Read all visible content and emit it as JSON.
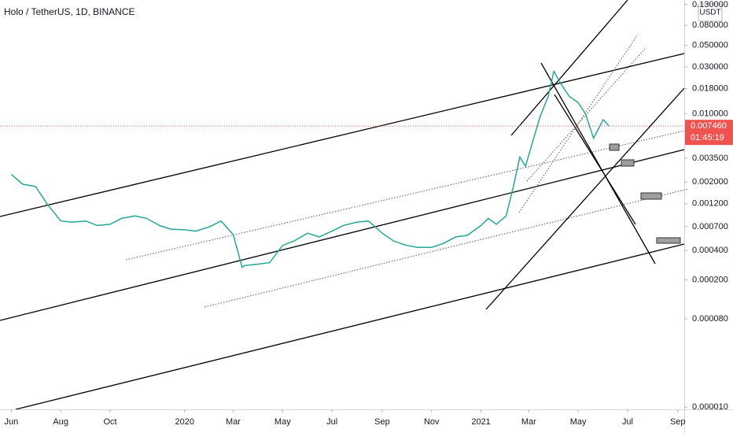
{
  "chart_data": {
    "type": "line",
    "title": "Holo / TetherUS, 1D, BINANCE",
    "currency": "USDT",
    "countdown": "01:45:19",
    "last_price": {
      "value": 0.00746,
      "label": "0.007460"
    },
    "log_scale": true,
    "color": "#26a69a",
    "x": [
      "2019-06-01",
      "2019-06-15",
      "2019-07-01",
      "2019-07-15",
      "2019-08-01",
      "2019-08-15",
      "2019-09-01",
      "2019-09-15",
      "2019-10-01",
      "2019-10-15",
      "2019-11-01",
      "2019-11-15",
      "2019-12-01",
      "2019-12-15",
      "2020-01-01",
      "2020-01-15",
      "2020-02-01",
      "2020-02-15",
      "2020-03-01",
      "2020-03-12",
      "2020-03-15",
      "2020-04-01",
      "2020-04-15",
      "2020-05-01",
      "2020-05-15",
      "2020-06-01",
      "2020-06-15",
      "2020-07-01",
      "2020-07-15",
      "2020-08-01",
      "2020-08-15",
      "2020-09-01",
      "2020-09-15",
      "2020-10-01",
      "2020-10-15",
      "2020-11-01",
      "2020-11-15",
      "2020-12-01",
      "2020-12-15",
      "2021-01-01",
      "2021-01-10",
      "2021-01-20",
      "2021-02-01",
      "2021-02-10",
      "2021-02-18",
      "2021-02-25",
      "2021-03-05",
      "2021-03-15",
      "2021-03-25",
      "2021-04-01",
      "2021-04-10",
      "2021-04-20",
      "2021-05-01",
      "2021-05-10",
      "2021-05-20",
      "2021-06-01",
      "2021-06-08"
    ],
    "values": [
      0.0024,
      0.0019,
      0.0018,
      0.0012,
      0.0008,
      0.00078,
      0.0008,
      0.00072,
      0.00074,
      0.00085,
      0.0009,
      0.00085,
      0.00072,
      0.00066,
      0.00065,
      0.00063,
      0.0007,
      0.0008,
      0.00058,
      0.00027,
      0.00028,
      0.00029,
      0.0003,
      0.00045,
      0.0005,
      0.0006,
      0.00055,
      0.00063,
      0.00072,
      0.00078,
      0.0008,
      0.0006,
      0.0005,
      0.00045,
      0.00043,
      0.00043,
      0.00047,
      0.00055,
      0.00057,
      0.00072,
      0.00085,
      0.00074,
      0.0009,
      0.0018,
      0.0036,
      0.0029,
      0.0049,
      0.0093,
      0.015,
      0.027,
      0.02,
      0.015,
      0.013,
      0.01,
      0.0056,
      0.0087,
      0.0075
    ],
    "xlim": [
      "2019-05-18",
      "2021-09-09"
    ],
    "xticks": [
      {
        "value": "2019-06-01",
        "label": "Jun"
      },
      {
        "value": "2019-08-01",
        "label": "Aug"
      },
      {
        "value": "2019-10-01",
        "label": "Oct"
      },
      {
        "value": "2020-01-01",
        "label": "2020"
      },
      {
        "value": "2020-03-01",
        "label": "Mar"
      },
      {
        "value": "2020-05-01",
        "label": "May"
      },
      {
        "value": "2020-07-01",
        "label": "Jul"
      },
      {
        "value": "2020-09-01",
        "label": "Sep"
      },
      {
        "value": "2020-11-01",
        "label": "Nov"
      },
      {
        "value": "2021-01-01",
        "label": "2021"
      },
      {
        "value": "2021-03-01",
        "label": "Mar"
      },
      {
        "value": "2021-05-01",
        "label": "May"
      },
      {
        "value": "2021-07-01",
        "label": "Jul"
      },
      {
        "value": "2021-09-01",
        "label": "Sep"
      }
    ],
    "ylim": [
      9.5e-06,
      0.145
    ],
    "yticks": [
      {
        "value": 0.13,
        "label": "0.130000"
      },
      {
        "value": 0.08,
        "label": "0.080000"
      },
      {
        "value": 0.05,
        "label": "0.050000"
      },
      {
        "value": 0.03,
        "label": "0.030000"
      },
      {
        "value": 0.018,
        "label": "0.018000"
      },
      {
        "value": 0.01,
        "label": "0.010000"
      },
      {
        "value": 0.0035,
        "label": "0.003500"
      },
      {
        "value": 0.002,
        "label": "0.002000"
      },
      {
        "value": 0.0012,
        "label": "0.001200"
      },
      {
        "value": 0.0007,
        "label": "0.000700"
      },
      {
        "value": 0.0004,
        "label": "0.000400"
      },
      {
        "value": 0.0002,
        "label": "0.000200"
      },
      {
        "value": 8e-05,
        "label": "0.000080"
      },
      {
        "value": 1e-05,
        "label": "0.000010"
      }
    ]
  }
}
